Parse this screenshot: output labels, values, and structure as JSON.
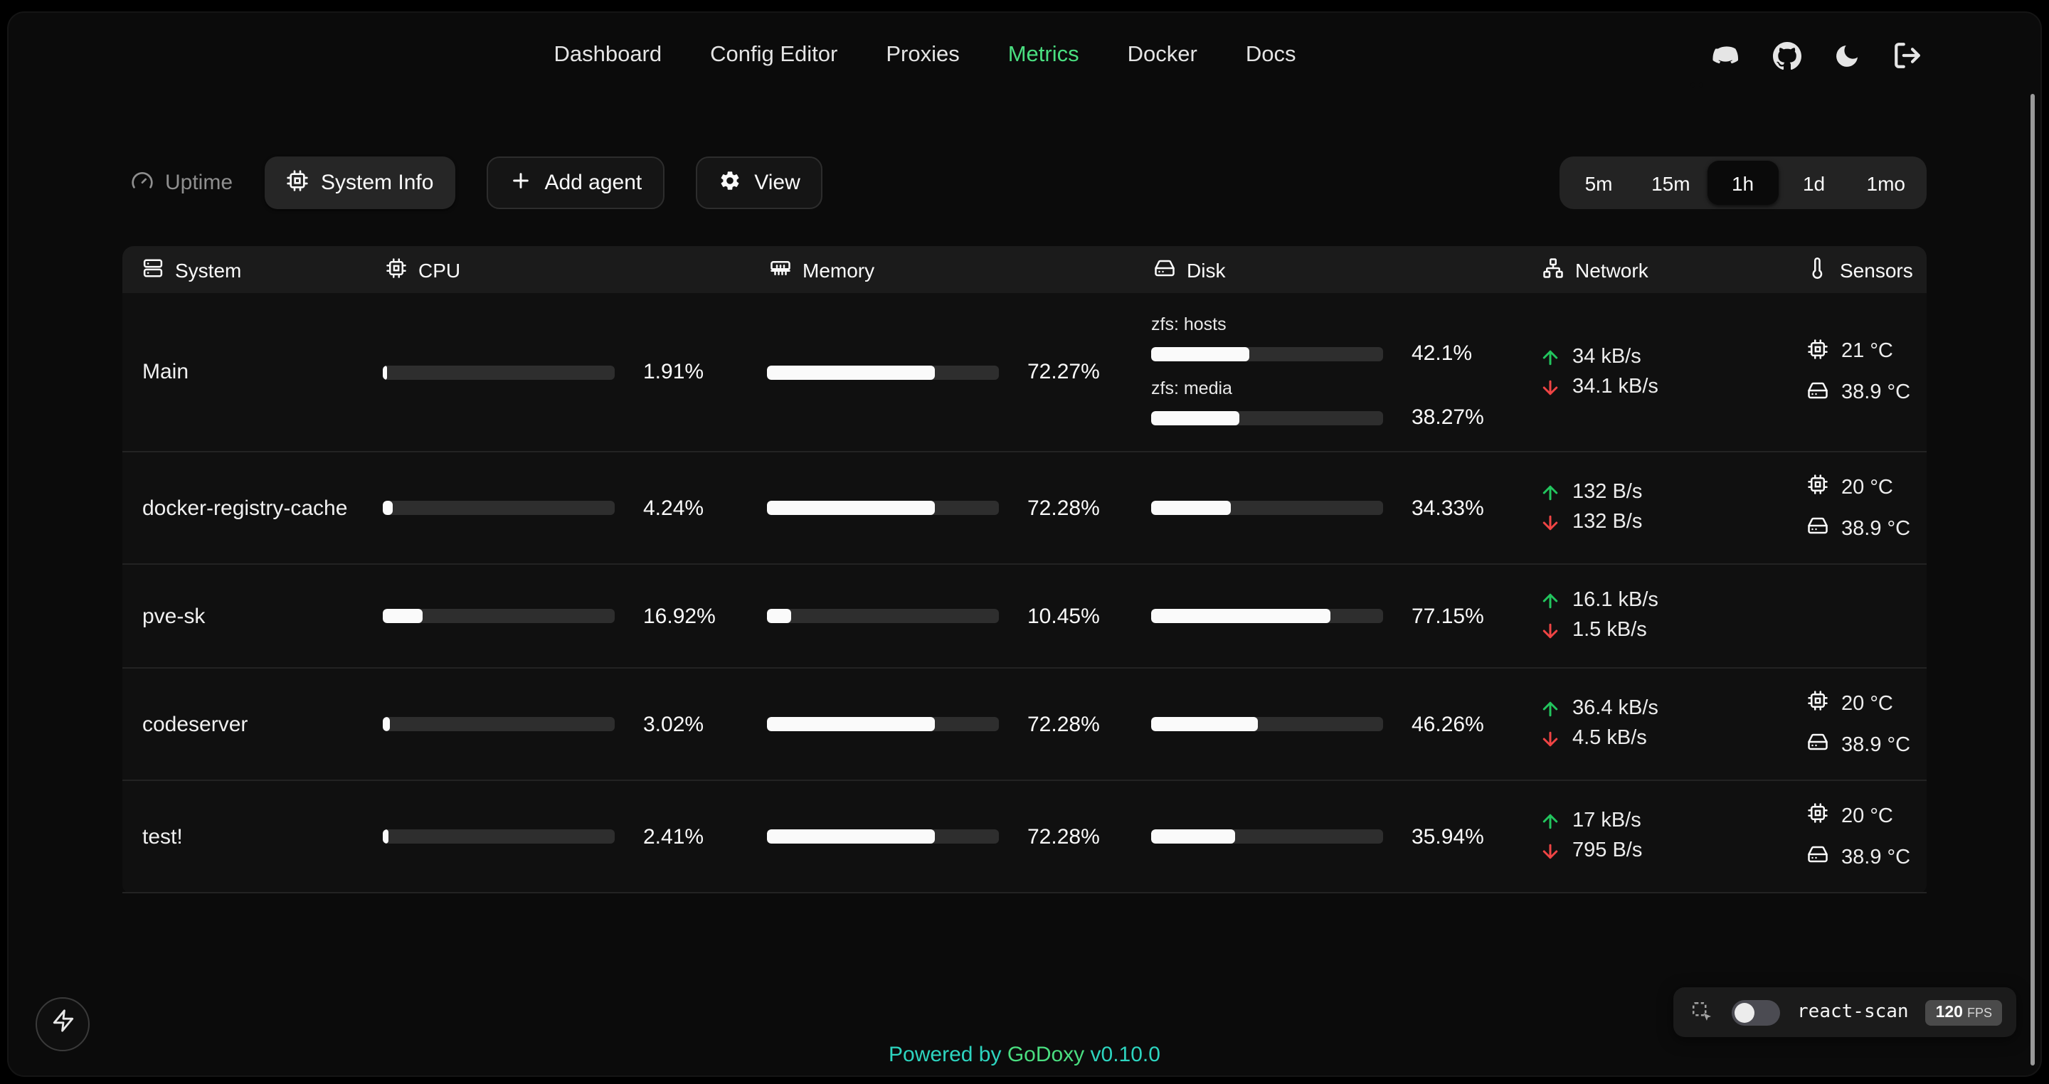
{
  "nav": {
    "items": [
      "Dashboard",
      "Config Editor",
      "Proxies",
      "Metrics",
      "Docker",
      "Docs"
    ],
    "active": "Metrics",
    "icon_names": [
      "discord-icon",
      "github-icon",
      "dark-mode-moon-icon",
      "logout-icon"
    ]
  },
  "toolbar": {
    "uptime_label": "Uptime",
    "system_info_label": "System Info",
    "add_agent_label": "Add agent",
    "view_label": "View",
    "time_ranges": [
      "5m",
      "15m",
      "1h",
      "1d",
      "1mo"
    ],
    "active_range": "1h"
  },
  "table": {
    "columns": [
      "System",
      "CPU",
      "Memory",
      "Disk",
      "Network",
      "Sensors"
    ],
    "column_icons": [
      "server-icon",
      "cpu-chip-icon",
      "memory-stick-icon",
      "hard-drive-icon",
      "network-icon",
      "thermometer-icon"
    ],
    "rows": [
      {
        "system": "Main",
        "cpu": {
          "percent": 1.91,
          "label": "1.91%"
        },
        "memory": {
          "percent": 72.27,
          "label": "72.27%"
        },
        "disks": [
          {
            "name": "zfs: hosts",
            "percent": 42.1,
            "label": "42.1%"
          },
          {
            "name": "zfs: media",
            "percent": 38.27,
            "label": "38.27%"
          }
        ],
        "network": {
          "up": "34 kB/s",
          "down": "34.1 kB/s"
        },
        "sensors": [
          {
            "icon": "cpu-chip-icon",
            "value": "21 °C"
          },
          {
            "icon": "hard-drive-icon",
            "value": "38.9 °C"
          }
        ]
      },
      {
        "system": "docker-registry-cache",
        "cpu": {
          "percent": 4.24,
          "label": "4.24%"
        },
        "memory": {
          "percent": 72.28,
          "label": "72.28%"
        },
        "disks": [
          {
            "name": "",
            "percent": 34.33,
            "label": "34.33%"
          }
        ],
        "network": {
          "up": "132 B/s",
          "down": "132 B/s"
        },
        "sensors": [
          {
            "icon": "cpu-chip-icon",
            "value": "20 °C"
          },
          {
            "icon": "hard-drive-icon",
            "value": "38.9 °C"
          }
        ]
      },
      {
        "system": "pve-sk",
        "cpu": {
          "percent": 16.92,
          "label": "16.92%"
        },
        "memory": {
          "percent": 10.45,
          "label": "10.45%"
        },
        "disks": [
          {
            "name": "",
            "percent": 77.15,
            "label": "77.15%"
          }
        ],
        "network": {
          "up": "16.1 kB/s",
          "down": "1.5 kB/s"
        },
        "sensors": []
      },
      {
        "system": "codeserver",
        "cpu": {
          "percent": 3.02,
          "label": "3.02%"
        },
        "memory": {
          "percent": 72.28,
          "label": "72.28%"
        },
        "disks": [
          {
            "name": "",
            "percent": 46.26,
            "label": "46.26%"
          }
        ],
        "network": {
          "up": "36.4 kB/s",
          "down": "4.5 kB/s"
        },
        "sensors": [
          {
            "icon": "cpu-chip-icon",
            "value": "20 °C"
          },
          {
            "icon": "hard-drive-icon",
            "value": "38.9 °C"
          }
        ]
      },
      {
        "system": "test!",
        "cpu": {
          "percent": 2.41,
          "label": "2.41%"
        },
        "memory": {
          "percent": 72.28,
          "label": "72.28%"
        },
        "disks": [
          {
            "name": "",
            "percent": 35.94,
            "label": "35.94%"
          }
        ],
        "network": {
          "up": "17 kB/s",
          "down": "795 B/s"
        },
        "sensors": [
          {
            "icon": "cpu-chip-icon",
            "value": "20 °C"
          },
          {
            "icon": "hard-drive-icon",
            "value": "38.9 °C"
          }
        ]
      }
    ]
  },
  "footer": {
    "powered_by": "Powered by",
    "brand": "GoDoxy",
    "version": "v0.10.0"
  },
  "react_scan": {
    "label": "react-scan",
    "fps": "120",
    "fps_unit": "FPS"
  },
  "colors": {
    "accent_green": "#4ade80",
    "upload_green": "#22c55e",
    "download_red": "#ef4444",
    "footer_teal": "#2dd4bf",
    "bar_fill": "#fafafa",
    "bar_track": "#2e2e2e"
  }
}
